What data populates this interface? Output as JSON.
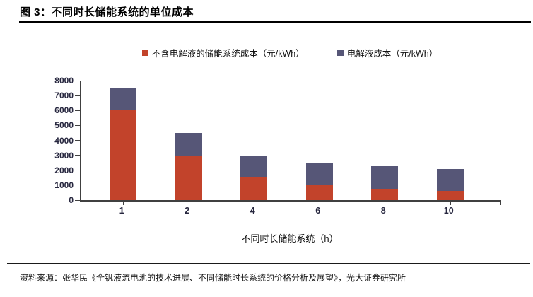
{
  "header": {
    "title": "图 3：不同时长储能系统的单位成本"
  },
  "chart_data": {
    "type": "bar",
    "stacked": true,
    "title": "图 3：不同时长储能系统的单位成本",
    "categories": [
      "1",
      "2",
      "4",
      "6",
      "8",
      "10"
    ],
    "series": [
      {
        "name": "不含电解液的储能系统成本（元/kWh）",
        "color": "#C2432B",
        "values": [
          6000,
          3000,
          1500,
          1000,
          750,
          600
        ]
      },
      {
        "name": "电解液成本（元/kWh）",
        "color": "#565677",
        "values": [
          1500,
          1500,
          1500,
          1500,
          1500,
          1500
        ]
      }
    ],
    "totals": [
      7500,
      4500,
      3000,
      2500,
      2250,
      2100
    ],
    "xlabel": "不同时长储能系统（h）",
    "ylabel": "",
    "ylim": [
      0,
      8000
    ],
    "yticks": [
      0,
      1000,
      2000,
      3000,
      4000,
      5000,
      6000,
      7000,
      8000
    ],
    "grid": false,
    "legend_position": "top"
  },
  "footer": {
    "source": "资料来源：张华民《全钒液流电池的技术进展、不同储能时长系统的价格分析及展望》，光大证券研究所"
  }
}
